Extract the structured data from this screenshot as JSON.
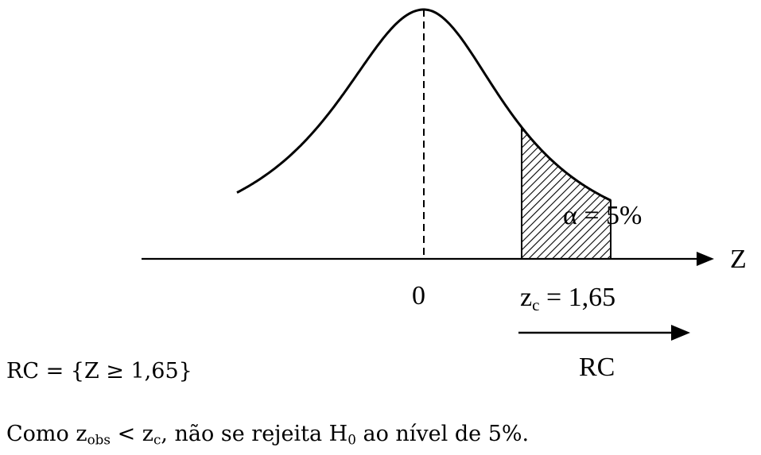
{
  "diagram": {
    "axis_label": "Z",
    "mean_tick": "0",
    "alpha_label": "α = 5%",
    "critical_var": "z",
    "critical_sub": "c",
    "critical_value": "= 1,65",
    "rc_arrow_label": "RC"
  },
  "text": {
    "rc_definition": "RC = {Z ≥ 1,65}",
    "conclusion": {
      "part1": "Como z",
      "sub1": "obs",
      "part2": " < z",
      "sub2": "c",
      "part3": ", não se rejeita H",
      "sub3": "0",
      "part4": " ao nível de 5%."
    }
  },
  "colors": {
    "ink": "#000000",
    "background": "#ffffff"
  }
}
